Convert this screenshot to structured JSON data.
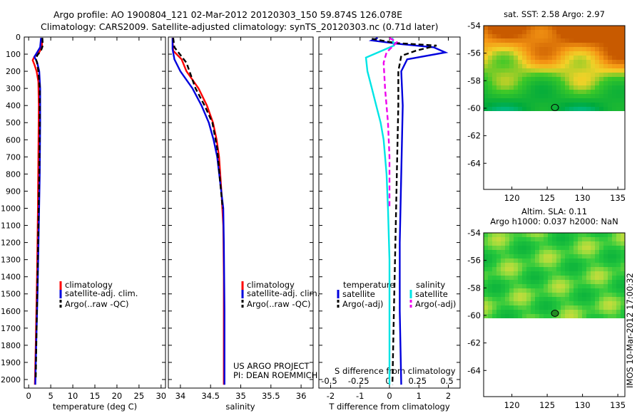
{
  "header": {
    "title_line1": "Argo profile: AO 1900804_121 02-Mar-2012 20120303_150 59.874S 126.078E",
    "title_line2": "Climatology: CARS2009. Satellite-adjusted climatology: synTS_20120303.nc (0.71d later)"
  },
  "colors": {
    "climatology": "#ff0000",
    "satellite_adj": "#0000dd",
    "argo": "#000000",
    "salinity_satellite": "#00e5e5",
    "salinity_argo": "#ee00ee"
  },
  "chart_data": [
    {
      "id": "temperature",
      "type": "line",
      "xlabel": "temperature (deg C)",
      "ylabel": "",
      "xlim": [
        -1,
        31
      ],
      "ylim": [
        2050,
        0
      ],
      "xticks": [
        0,
        5,
        10,
        15,
        20,
        25,
        30
      ],
      "yticks": [
        0,
        100,
        200,
        300,
        400,
        500,
        600,
        700,
        800,
        900,
        1000,
        1100,
        1200,
        1300,
        1400,
        1500,
        1600,
        1700,
        1800,
        1900,
        2000
      ],
      "legend": [
        "climatology",
        "satellite-adj. clim.",
        "Argo(..raw -QC)"
      ],
      "series": [
        {
          "name": "climatology",
          "style": "solid",
          "color": "#ff0000",
          "points": [
            [
              3.0,
              5
            ],
            [
              3.0,
              50
            ],
            [
              2.5,
              85
            ],
            [
              1.3,
              115
            ],
            [
              0.9,
              135
            ],
            [
              1.3,
              160
            ],
            [
              1.8,
              200
            ],
            [
              2.2,
              260
            ],
            [
              2.3,
              400
            ],
            [
              2.2,
              700
            ],
            [
              2.1,
              1000
            ],
            [
              1.9,
              1400
            ],
            [
              1.6,
              1800
            ],
            [
              1.4,
              2030
            ]
          ]
        },
        {
          "name": "satellite-adj. clim.",
          "style": "solid",
          "color": "#0000dd",
          "points": [
            [
              2.8,
              5
            ],
            [
              2.6,
              60
            ],
            [
              1.8,
              95
            ],
            [
              1.3,
              115
            ],
            [
              1.9,
              145
            ],
            [
              2.4,
              200
            ],
            [
              2.6,
              300
            ],
            [
              2.6,
              500
            ],
            [
              2.5,
              800
            ],
            [
              2.3,
              1100
            ],
            [
              2.0,
              1500
            ],
            [
              1.7,
              1800
            ],
            [
              1.5,
              2030
            ]
          ]
        },
        {
          "name": "Argo(..raw -QC)",
          "style": "dashed",
          "color": "#000000",
          "points": [
            [
              3.1,
              5
            ],
            [
              3.2,
              50
            ],
            [
              2.8,
              80
            ],
            [
              2.0,
              105
            ],
            [
              1.6,
              125
            ],
            [
              1.9,
              150
            ],
            [
              2.2,
              200
            ],
            [
              2.5,
              300
            ],
            [
              2.5,
              500
            ],
            [
              2.4,
              800
            ],
            [
              2.2,
              1100
            ],
            [
              2.0,
              1400
            ],
            [
              1.8,
              1700
            ],
            [
              1.6,
              2000
            ]
          ]
        }
      ]
    },
    {
      "id": "salinity",
      "type": "line",
      "xlabel": "salinity",
      "ylabel": "",
      "xlim": [
        33.8,
        36.2
      ],
      "ylim": [
        2050,
        0
      ],
      "xticks": [
        34,
        34.5,
        35,
        35.5,
        36
      ],
      "xticklabels": [
        "34",
        "34.5",
        "35",
        "35.5",
        "36"
      ],
      "legend": [
        "climatology",
        "satellite-adj. clim.",
        "Argo(..raw -QC)"
      ],
      "annotation": [
        "US ARGO PROJECT",
        "PI: DEAN ROEMMICH"
      ],
      "series": [
        {
          "name": "climatology",
          "style": "solid",
          "color": "#ff0000",
          "points": [
            [
              33.87,
              5
            ],
            [
              33.88,
              80
            ],
            [
              34.02,
              130
            ],
            [
              34.1,
              200
            ],
            [
              34.3,
              300
            ],
            [
              34.44,
              400
            ],
            [
              34.54,
              500
            ],
            [
              34.6,
              600
            ],
            [
              34.64,
              700
            ],
            [
              34.68,
              900
            ],
            [
              34.71,
              1100
            ],
            [
              34.72,
              1400
            ],
            [
              34.72,
              1700
            ],
            [
              34.72,
              2030
            ]
          ]
        },
        {
          "name": "satellite-adj. clim.",
          "style": "solid",
          "color": "#0000dd",
          "points": [
            [
              33.87,
              5
            ],
            [
              33.87,
              70
            ],
            [
              33.9,
              130
            ],
            [
              34.0,
              200
            ],
            [
              34.2,
              300
            ],
            [
              34.35,
              400
            ],
            [
              34.47,
              500
            ],
            [
              34.55,
              600
            ],
            [
              34.61,
              700
            ],
            [
              34.66,
              850
            ],
            [
              34.71,
              1000
            ],
            [
              34.72,
              1200
            ],
            [
              34.73,
              1600
            ],
            [
              34.73,
              2030
            ]
          ]
        },
        {
          "name": "Argo(..raw -QC)",
          "style": "dashed",
          "color": "#000000",
          "points": [
            [
              33.88,
              5
            ],
            [
              33.9,
              60
            ],
            [
              34.1,
              150
            ],
            [
              34.25,
              300
            ],
            [
              34.4,
              400
            ],
            [
              34.53,
              500
            ],
            [
              34.61,
              650
            ],
            [
              34.66,
              850
            ],
            [
              34.7,
              1000
            ]
          ]
        }
      ]
    },
    {
      "id": "difference",
      "type": "line",
      "xlabel": "T difference from climatology",
      "x2label": "S difference from climatology",
      "xlim": [
        -2.4,
        2.4
      ],
      "ylim": [
        2050,
        0
      ],
      "xticks": [
        -2,
        -1,
        0,
        1,
        2
      ],
      "x2ticks": [
        -0.5,
        -0.25,
        0,
        0.25,
        0.5
      ],
      "x2ticklabels": [
        "-0.5",
        "-0.25",
        "0",
        "0.25",
        "0.5"
      ],
      "legend_headers": [
        "temperature",
        "salinity"
      ],
      "legend": [
        "satellite",
        "Argo(-adj)",
        "satellite",
        "Argo(-adj)"
      ],
      "series": [
        {
          "name": "temperature satellite",
          "style": "solid",
          "color": "#0000dd",
          "points": [
            [
              -0.4,
              5
            ],
            [
              -0.6,
              20
            ],
            [
              0.3,
              40
            ],
            [
              1.5,
              60
            ],
            [
              1.9,
              90
            ],
            [
              0.6,
              130
            ],
            [
              0.4,
              200
            ],
            [
              0.45,
              400
            ],
            [
              0.4,
              800
            ],
            [
              0.35,
              1200
            ],
            [
              0.35,
              1600
            ],
            [
              0.4,
              2030
            ]
          ]
        },
        {
          "name": "temperature Argo(-adj)",
          "style": "dashed",
          "color": "#000000",
          "points": [
            [
              -0.6,
              10
            ],
            [
              0.2,
              35
            ],
            [
              1.6,
              50
            ],
            [
              0.9,
              80
            ],
            [
              0.4,
              110
            ],
            [
              0.3,
              200
            ],
            [
              0.3,
              400
            ],
            [
              0.25,
              800
            ],
            [
              0.2,
              1200
            ],
            [
              0.15,
              1600
            ],
            [
              0.1,
              2030
            ]
          ]
        },
        {
          "name": "salinity satellite",
          "style": "solid",
          "color": "#00e5e5",
          "points": [
            [
              0.1,
              5
            ],
            [
              0.15,
              50
            ],
            [
              -0.8,
              120
            ],
            [
              -0.75,
              200
            ],
            [
              -0.6,
              300
            ],
            [
              -0.45,
              400
            ],
            [
              -0.3,
              500
            ],
            [
              -0.2,
              600
            ],
            [
              -0.1,
              800
            ],
            [
              -0.05,
              1000
            ],
            [
              0.0,
              1300
            ],
            [
              0.0,
              1700
            ],
            [
              0.0,
              2030
            ]
          ]
        },
        {
          "name": "salinity Argo(-adj)",
          "style": "dashed",
          "color": "#ee00ee",
          "points": [
            [
              0.0,
              5
            ],
            [
              0.25,
              30
            ],
            [
              -0.1,
              90
            ],
            [
              -0.2,
              150
            ],
            [
              -0.15,
              300
            ],
            [
              -0.05,
              500
            ],
            [
              0.0,
              700
            ],
            [
              0.0,
              1000
            ]
          ]
        }
      ]
    },
    {
      "id": "sst_map",
      "type": "heatmap",
      "title": "sat. SST: 2.58 Argo: 2.97",
      "xlim": [
        116,
        136
      ],
      "ylim": [
        -65.9,
        -54
      ],
      "xticks": [
        120,
        125,
        130,
        135
      ],
      "yticks": [
        -54,
        -56,
        -58,
        -60,
        -62,
        -64
      ],
      "data_lat_range": [
        -54,
        -60
      ],
      "marker": [
        126.08,
        -59.87
      ]
    },
    {
      "id": "sla_map",
      "type": "heatmap",
      "title_line1": "Altim. SLA: 0.11",
      "title_line2": "Argo h1000: 0.037 h2000: NaN",
      "xlim": [
        116,
        136
      ],
      "ylim": [
        -65.9,
        -54
      ],
      "xticks": [
        120,
        125,
        130,
        135
      ],
      "yticks": [
        -54,
        -56,
        -58,
        -60,
        -62,
        -64
      ],
      "data_lat_range": [
        -54,
        -60
      ],
      "marker": [
        126.08,
        -59.87
      ]
    }
  ],
  "yaxis_labels": [
    "0",
    "100",
    "200",
    "300",
    "400",
    "500",
    "600",
    "700",
    "800",
    "900",
    "1000",
    "1100",
    "1200",
    "1300",
    "1400",
    "1500",
    "1600",
    "1700",
    "1800",
    "1900",
    "2000"
  ],
  "footer_stamp": "IMOS 10-Mar-2012 17:00:32"
}
